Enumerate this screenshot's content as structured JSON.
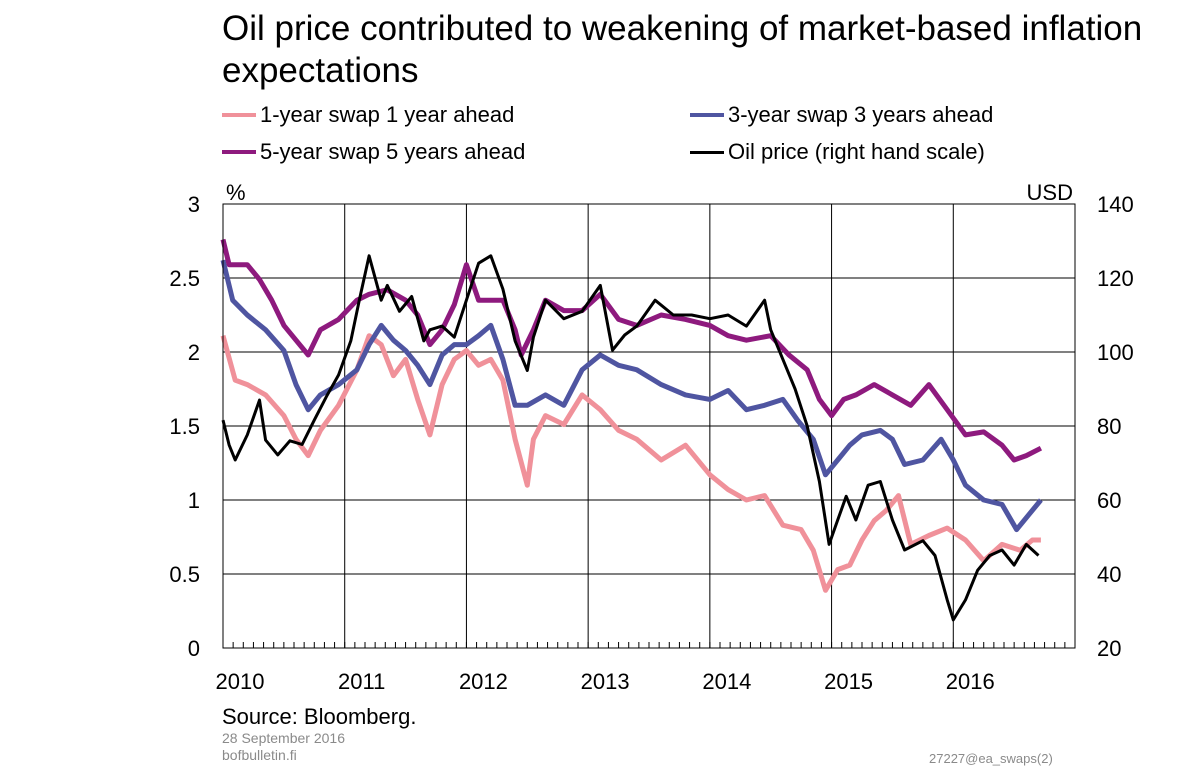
{
  "chart_data": {
    "type": "line",
    "title": "Oil price contributed to weakening of market-based inflation expectations",
    "ylabel_left": "%",
    "ylabel_right": "USD",
    "xlim": [
      2010,
      2017
    ],
    "ylim_left": [
      0,
      3
    ],
    "ylim_right": [
      20,
      140
    ],
    "x_ticks": [
      "2010",
      "2011",
      "2012",
      "2013",
      "2014",
      "2015",
      "2016"
    ],
    "y_ticks_left": [
      "0",
      "0.5",
      "1",
      "1.5",
      "2",
      "2.5",
      "3"
    ],
    "y_ticks_right": [
      "20",
      "40",
      "60",
      "80",
      "100",
      "120",
      "140"
    ],
    "grid": true,
    "legend_position": "top",
    "series": [
      {
        "name": "1-year swap 1 year ahead",
        "axis": "left",
        "color": "#F0919A",
        "points": [
          [
            2010.0,
            2.11
          ],
          [
            2010.1,
            1.81
          ],
          [
            2010.2,
            1.78
          ],
          [
            2010.35,
            1.71
          ],
          [
            2010.5,
            1.57
          ],
          [
            2010.6,
            1.41
          ],
          [
            2010.7,
            1.3
          ],
          [
            2010.8,
            1.47
          ],
          [
            2010.95,
            1.64
          ],
          [
            2011.1,
            1.88
          ],
          [
            2011.2,
            2.11
          ],
          [
            2011.3,
            2.05
          ],
          [
            2011.4,
            1.84
          ],
          [
            2011.5,
            1.95
          ],
          [
            2011.6,
            1.68
          ],
          [
            2011.7,
            1.44
          ],
          [
            2011.8,
            1.78
          ],
          [
            2011.9,
            1.95
          ],
          [
            2012.0,
            2.01
          ],
          [
            2012.1,
            1.91
          ],
          [
            2012.2,
            1.95
          ],
          [
            2012.3,
            1.81
          ],
          [
            2012.4,
            1.41
          ],
          [
            2012.5,
            1.1
          ],
          [
            2012.55,
            1.41
          ],
          [
            2012.65,
            1.57
          ],
          [
            2012.8,
            1.51
          ],
          [
            2012.95,
            1.71
          ],
          [
            2013.1,
            1.61
          ],
          [
            2013.25,
            1.47
          ],
          [
            2013.4,
            1.41
          ],
          [
            2013.6,
            1.27
          ],
          [
            2013.8,
            1.37
          ],
          [
            2014.0,
            1.17
          ],
          [
            2014.15,
            1.07
          ],
          [
            2014.3,
            1.0
          ],
          [
            2014.45,
            1.03
          ],
          [
            2014.6,
            0.83
          ],
          [
            2014.75,
            0.8
          ],
          [
            2014.85,
            0.66
          ],
          [
            2014.95,
            0.39
          ],
          [
            2015.05,
            0.53
          ],
          [
            2015.15,
            0.56
          ],
          [
            2015.25,
            0.73
          ],
          [
            2015.35,
            0.86
          ],
          [
            2015.45,
            0.93
          ],
          [
            2015.55,
            1.03
          ],
          [
            2015.65,
            0.7
          ],
          [
            2015.8,
            0.76
          ],
          [
            2015.95,
            0.81
          ],
          [
            2016.1,
            0.73
          ],
          [
            2016.25,
            0.59
          ],
          [
            2016.4,
            0.7
          ],
          [
            2016.55,
            0.66
          ],
          [
            2016.65,
            0.73
          ],
          [
            2016.72,
            0.73
          ]
        ]
      },
      {
        "name": "3-year swap 3 years ahead",
        "axis": "left",
        "color": "#4F55A1",
        "points": [
          [
            2010.0,
            2.62
          ],
          [
            2010.08,
            2.35
          ],
          [
            2010.2,
            2.25
          ],
          [
            2010.35,
            2.15
          ],
          [
            2010.5,
            2.01
          ],
          [
            2010.6,
            1.78
          ],
          [
            2010.7,
            1.61
          ],
          [
            2010.8,
            1.71
          ],
          [
            2010.95,
            1.78
          ],
          [
            2011.1,
            1.88
          ],
          [
            2011.2,
            2.05
          ],
          [
            2011.3,
            2.18
          ],
          [
            2011.4,
            2.08
          ],
          [
            2011.5,
            2.01
          ],
          [
            2011.6,
            1.91
          ],
          [
            2011.7,
            1.78
          ],
          [
            2011.8,
            1.98
          ],
          [
            2011.9,
            2.05
          ],
          [
            2012.0,
            2.05
          ],
          [
            2012.1,
            2.11
          ],
          [
            2012.2,
            2.18
          ],
          [
            2012.3,
            1.95
          ],
          [
            2012.4,
            1.64
          ],
          [
            2012.5,
            1.64
          ],
          [
            2012.65,
            1.71
          ],
          [
            2012.8,
            1.64
          ],
          [
            2012.95,
            1.88
          ],
          [
            2013.1,
            1.98
          ],
          [
            2013.25,
            1.91
          ],
          [
            2013.4,
            1.88
          ],
          [
            2013.6,
            1.78
          ],
          [
            2013.8,
            1.71
          ],
          [
            2014.0,
            1.68
          ],
          [
            2014.15,
            1.74
          ],
          [
            2014.3,
            1.61
          ],
          [
            2014.45,
            1.64
          ],
          [
            2014.6,
            1.68
          ],
          [
            2014.72,
            1.54
          ],
          [
            2014.85,
            1.41
          ],
          [
            2014.95,
            1.17
          ],
          [
            2015.05,
            1.27
          ],
          [
            2015.15,
            1.37
          ],
          [
            2015.25,
            1.44
          ],
          [
            2015.4,
            1.47
          ],
          [
            2015.5,
            1.41
          ],
          [
            2015.6,
            1.24
          ],
          [
            2015.75,
            1.27
          ],
          [
            2015.9,
            1.41
          ],
          [
            2016.0,
            1.27
          ],
          [
            2016.1,
            1.1
          ],
          [
            2016.25,
            1.0
          ],
          [
            2016.4,
            0.97
          ],
          [
            2016.52,
            0.8
          ],
          [
            2016.62,
            0.9
          ],
          [
            2016.72,
            1.0
          ]
        ]
      },
      {
        "name": "5-year swap 5 years ahead",
        "axis": "left",
        "color": "#8E1A7E",
        "points": [
          [
            2010.0,
            2.76
          ],
          [
            2010.05,
            2.59
          ],
          [
            2010.2,
            2.59
          ],
          [
            2010.3,
            2.49
          ],
          [
            2010.4,
            2.35
          ],
          [
            2010.5,
            2.18
          ],
          [
            2010.6,
            2.08
          ],
          [
            2010.7,
            1.98
          ],
          [
            2010.8,
            2.15
          ],
          [
            2010.95,
            2.22
          ],
          [
            2011.1,
            2.35
          ],
          [
            2011.2,
            2.39
          ],
          [
            2011.35,
            2.42
          ],
          [
            2011.5,
            2.35
          ],
          [
            2011.6,
            2.25
          ],
          [
            2011.7,
            2.05
          ],
          [
            2011.8,
            2.15
          ],
          [
            2011.9,
            2.32
          ],
          [
            2012.0,
            2.59
          ],
          [
            2012.1,
            2.35
          ],
          [
            2012.2,
            2.35
          ],
          [
            2012.3,
            2.35
          ],
          [
            2012.4,
            2.15
          ],
          [
            2012.45,
            1.98
          ],
          [
            2012.55,
            2.15
          ],
          [
            2012.65,
            2.35
          ],
          [
            2012.8,
            2.28
          ],
          [
            2012.95,
            2.28
          ],
          [
            2013.1,
            2.39
          ],
          [
            2013.25,
            2.22
          ],
          [
            2013.4,
            2.18
          ],
          [
            2013.6,
            2.25
          ],
          [
            2013.8,
            2.22
          ],
          [
            2014.0,
            2.18
          ],
          [
            2014.15,
            2.11
          ],
          [
            2014.3,
            2.08
          ],
          [
            2014.5,
            2.11
          ],
          [
            2014.65,
            1.98
          ],
          [
            2014.8,
            1.88
          ],
          [
            2014.9,
            1.68
          ],
          [
            2015.0,
            1.57
          ],
          [
            2015.1,
            1.68
          ],
          [
            2015.2,
            1.71
          ],
          [
            2015.35,
            1.78
          ],
          [
            2015.5,
            1.71
          ],
          [
            2015.65,
            1.64
          ],
          [
            2015.8,
            1.78
          ],
          [
            2015.95,
            1.61
          ],
          [
            2016.1,
            1.44
          ],
          [
            2016.25,
            1.46
          ],
          [
            2016.4,
            1.37
          ],
          [
            2016.5,
            1.27
          ],
          [
            2016.6,
            1.3
          ],
          [
            2016.72,
            1.35
          ]
        ]
      },
      {
        "name": "Oil price (right hand scale)",
        "axis": "right",
        "color": "#000000",
        "points": [
          [
            2010.0,
            81.6
          ],
          [
            2010.05,
            74.9
          ],
          [
            2010.1,
            70.8
          ],
          [
            2010.2,
            77.6
          ],
          [
            2010.3,
            87
          ],
          [
            2010.35,
            76.2
          ],
          [
            2010.45,
            72.2
          ],
          [
            2010.55,
            76
          ],
          [
            2010.65,
            75
          ],
          [
            2010.75,
            81.6
          ],
          [
            2010.85,
            88
          ],
          [
            2010.95,
            93.8
          ],
          [
            2011.05,
            103
          ],
          [
            2011.12,
            114
          ],
          [
            2011.2,
            126
          ],
          [
            2011.3,
            114
          ],
          [
            2011.35,
            118
          ],
          [
            2011.45,
            111
          ],
          [
            2011.55,
            115
          ],
          [
            2011.65,
            103
          ],
          [
            2011.7,
            106
          ],
          [
            2011.8,
            107
          ],
          [
            2011.9,
            104
          ],
          [
            2012.0,
            114
          ],
          [
            2012.1,
            124
          ],
          [
            2012.2,
            126
          ],
          [
            2012.3,
            117
          ],
          [
            2012.4,
            103
          ],
          [
            2012.5,
            95
          ],
          [
            2012.55,
            104
          ],
          [
            2012.65,
            114
          ],
          [
            2012.8,
            109
          ],
          [
            2012.95,
            111
          ],
          [
            2013.1,
            118
          ],
          [
            2013.2,
            100.5
          ],
          [
            2013.3,
            104.6
          ],
          [
            2013.4,
            107
          ],
          [
            2013.55,
            114
          ],
          [
            2013.7,
            110
          ],
          [
            2013.85,
            110
          ],
          [
            2014.0,
            109
          ],
          [
            2014.15,
            110
          ],
          [
            2014.3,
            107
          ],
          [
            2014.45,
            114
          ],
          [
            2014.5,
            106
          ],
          [
            2014.6,
            98
          ],
          [
            2014.7,
            90
          ],
          [
            2014.8,
            80
          ],
          [
            2014.9,
            65
          ],
          [
            2014.98,
            48
          ],
          [
            2015.05,
            54.6
          ],
          [
            2015.12,
            61
          ],
          [
            2015.2,
            54.6
          ],
          [
            2015.3,
            64
          ],
          [
            2015.4,
            65
          ],
          [
            2015.5,
            54.6
          ],
          [
            2015.6,
            46.5
          ],
          [
            2015.75,
            49
          ],
          [
            2015.85,
            45
          ],
          [
            2015.95,
            33
          ],
          [
            2016.0,
            27.6
          ],
          [
            2016.1,
            33
          ],
          [
            2016.2,
            41
          ],
          [
            2016.3,
            45
          ],
          [
            2016.4,
            46.5
          ],
          [
            2016.5,
            42.4
          ],
          [
            2016.6,
            48
          ],
          [
            2016.7,
            45
          ]
        ]
      }
    ]
  },
  "footer": {
    "source": "Source: Bloomberg.",
    "date": "28 September 2016",
    "site": "bofbulletin.fi",
    "code": "27227@ea_swaps(2)"
  }
}
